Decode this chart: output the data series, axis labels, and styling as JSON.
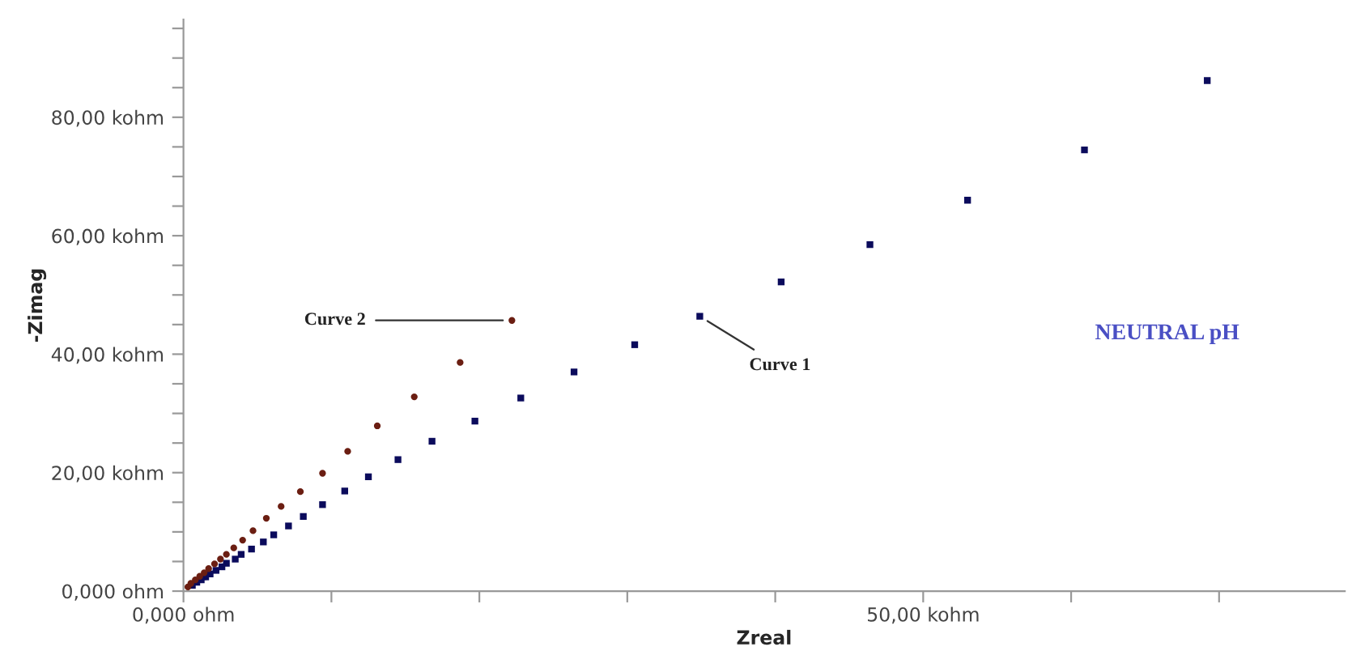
{
  "chart_data": {
    "type": "scatter",
    "xlabel": "Zreal",
    "ylabel": "-Zimag",
    "xlim": [
      0,
      78.5
    ],
    "ylim": [
      0,
      96.5
    ],
    "xticks": [
      {
        "value": 0,
        "label": "0,000 ohm"
      },
      {
        "value": 10,
        "label": null
      },
      {
        "value": 20,
        "label": null
      },
      {
        "value": 30,
        "label": null
      },
      {
        "value": 40,
        "label": null
      },
      {
        "value": 50,
        "label": "50,00 kohm"
      },
      {
        "value": 60,
        "label": null
      },
      {
        "value": 70,
        "label": null
      }
    ],
    "yticks": [
      {
        "value": 0,
        "label": "0,000 ohm"
      },
      {
        "value": 5,
        "label": null
      },
      {
        "value": 10,
        "label": null
      },
      {
        "value": 15,
        "label": null
      },
      {
        "value": 20,
        "label": "20,00 kohm"
      },
      {
        "value": 25,
        "label": null
      },
      {
        "value": 30,
        "label": null
      },
      {
        "value": 35,
        "label": null
      },
      {
        "value": 40,
        "label": "40,00 kohm"
      },
      {
        "value": 45,
        "label": null
      },
      {
        "value": 50,
        "label": null
      },
      {
        "value": 55,
        "label": null
      },
      {
        "value": 60,
        "label": "60,00 kohm"
      },
      {
        "value": 65,
        "label": null
      },
      {
        "value": 70,
        "label": null
      },
      {
        "value": 75,
        "label": null
      },
      {
        "value": 80,
        "label": "80,00 kohm"
      },
      {
        "value": 85,
        "label": null
      },
      {
        "value": 90,
        "label": null
      },
      {
        "value": 95,
        "label": null
      }
    ],
    "grid": false,
    "legend": false,
    "series": [
      {
        "color": "#0b0b5c",
        "marker": "square",
        "x": [
          69.2,
          60.9,
          53.0,
          46.4,
          40.4,
          34.9,
          30.5,
          26.4,
          22.8,
          19.7,
          16.8,
          14.5,
          12.5,
          10.9,
          9.4,
          8.1,
          7.1,
          6.1,
          5.4,
          4.6,
          3.9,
          3.5,
          2.9,
          2.6,
          2.2,
          1.8,
          1.5,
          1.2,
          0.9,
          0.6
        ],
        "values": [
          86.2,
          74.5,
          66.0,
          58.5,
          52.2,
          46.4,
          41.6,
          37.0,
          32.6,
          28.7,
          25.3,
          22.2,
          19.3,
          16.9,
          14.6,
          12.6,
          11.0,
          9.5,
          8.3,
          7.1,
          6.2,
          5.4,
          4.7,
          4.1,
          3.5,
          2.9,
          2.4,
          1.9,
          1.5,
          1.0
        ]
      },
      {
        "color": "#6b1e12",
        "marker": "circle",
        "x": [
          22.2,
          18.7,
          15.6,
          13.1,
          11.1,
          9.4,
          7.9,
          6.6,
          5.6,
          4.7,
          4.0,
          3.4,
          2.9,
          2.5,
          2.1,
          1.7,
          1.4,
          1.1,
          0.8,
          0.5,
          0.3
        ],
        "values": [
          45.7,
          38.6,
          32.8,
          27.9,
          23.6,
          19.9,
          16.8,
          14.3,
          12.3,
          10.2,
          8.6,
          7.3,
          6.2,
          5.4,
          4.6,
          3.8,
          3.1,
          2.5,
          1.9,
          1.3,
          0.7
        ]
      }
    ],
    "annotations": [
      {
        "text": "Curve 2",
        "x": 22.2,
        "y": 45.7
      },
      {
        "text": "Curve 1",
        "x": 34.9,
        "y": 46.4
      },
      "NEUTRAL pH"
    ]
  }
}
